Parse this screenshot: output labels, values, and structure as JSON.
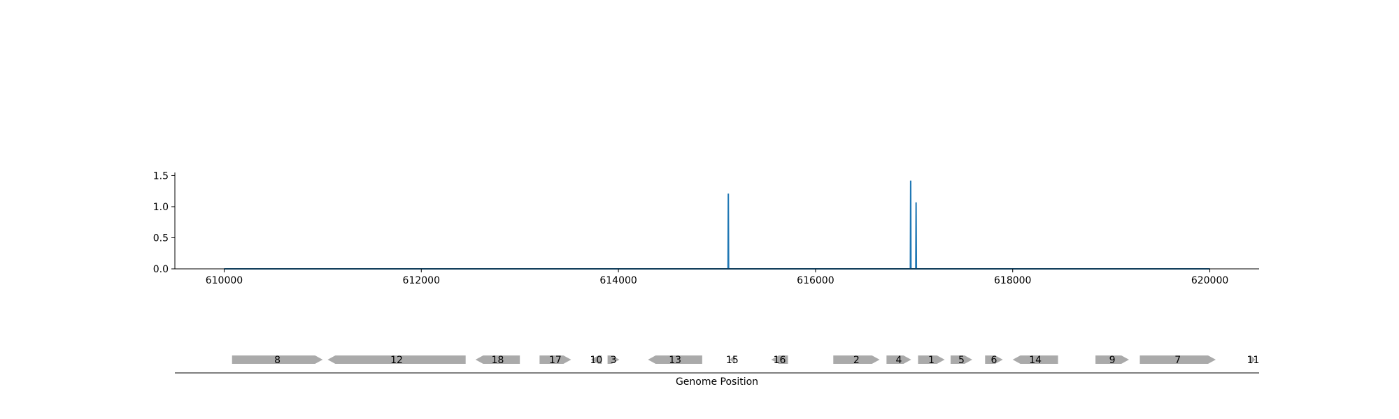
{
  "chart_data": [
    {
      "type": "line",
      "title": "",
      "xlabel": "",
      "ylabel": "",
      "xlim": [
        609500,
        620500
      ],
      "ylim": [
        0,
        1.55
      ],
      "x_ticks": [
        610000,
        612000,
        614000,
        616000,
        618000,
        620000
      ],
      "x_tick_labels": [
        "610000",
        "612000",
        "614000",
        "616000",
        "618000",
        "620000"
      ],
      "y_ticks": [
        0.0,
        0.5,
        1.0,
        1.5
      ],
      "y_tick_labels": [
        "0.0",
        "0.5",
        "1.0",
        "1.5"
      ],
      "grid": false,
      "series": [
        {
          "color": "#1f77b4",
          "points": [
            [
              610000,
              0
            ],
            [
              615112,
              0
            ],
            [
              615115,
              1.21
            ],
            [
              615118,
              0
            ],
            [
              616962,
              0
            ],
            [
              616965,
              1.42
            ],
            [
              616968,
              0
            ],
            [
              617017,
              0
            ],
            [
              617020,
              1.07
            ],
            [
              617023,
              0
            ],
            [
              620000,
              0
            ]
          ]
        }
      ]
    },
    {
      "type": "gene_map",
      "xlabel": "Genome Position",
      "xlim": [
        609500,
        620500
      ],
      "color": "#aaaaaa",
      "genes": [
        {
          "label": "8",
          "start": 610080,
          "end": 611000,
          "strand": "+"
        },
        {
          "label": "12",
          "start": 611050,
          "end": 612450,
          "strand": "-"
        },
        {
          "label": "18",
          "start": 612550,
          "end": 613000,
          "strand": "-"
        },
        {
          "label": "17",
          "start": 613200,
          "end": 613520,
          "strand": "+"
        },
        {
          "label": "10",
          "start": 613720,
          "end": 613830,
          "strand": "-"
        },
        {
          "label": "3",
          "start": 613890,
          "end": 614010,
          "strand": "+"
        },
        {
          "label": "13",
          "start": 614300,
          "end": 614850,
          "strand": "-"
        },
        {
          "label": "15",
          "start": 615130,
          "end": 615180,
          "strand": "-"
        },
        {
          "label": "16",
          "start": 615550,
          "end": 615720,
          "strand": "-"
        },
        {
          "label": "2",
          "start": 616180,
          "end": 616650,
          "strand": "+"
        },
        {
          "label": "4",
          "start": 616720,
          "end": 616970,
          "strand": "+"
        },
        {
          "label": "1",
          "start": 617040,
          "end": 617310,
          "strand": "+"
        },
        {
          "label": "5",
          "start": 617370,
          "end": 617590,
          "strand": "+"
        },
        {
          "label": "6",
          "start": 617720,
          "end": 617900,
          "strand": "+"
        },
        {
          "label": "14",
          "start": 618000,
          "end": 618460,
          "strand": "-"
        },
        {
          "label": "9",
          "start": 618840,
          "end": 619180,
          "strand": "+"
        },
        {
          "label": "7",
          "start": 619290,
          "end": 620060,
          "strand": "+"
        },
        {
          "label": "11",
          "start": 620420,
          "end": 620460,
          "strand": "+"
        }
      ]
    }
  ]
}
